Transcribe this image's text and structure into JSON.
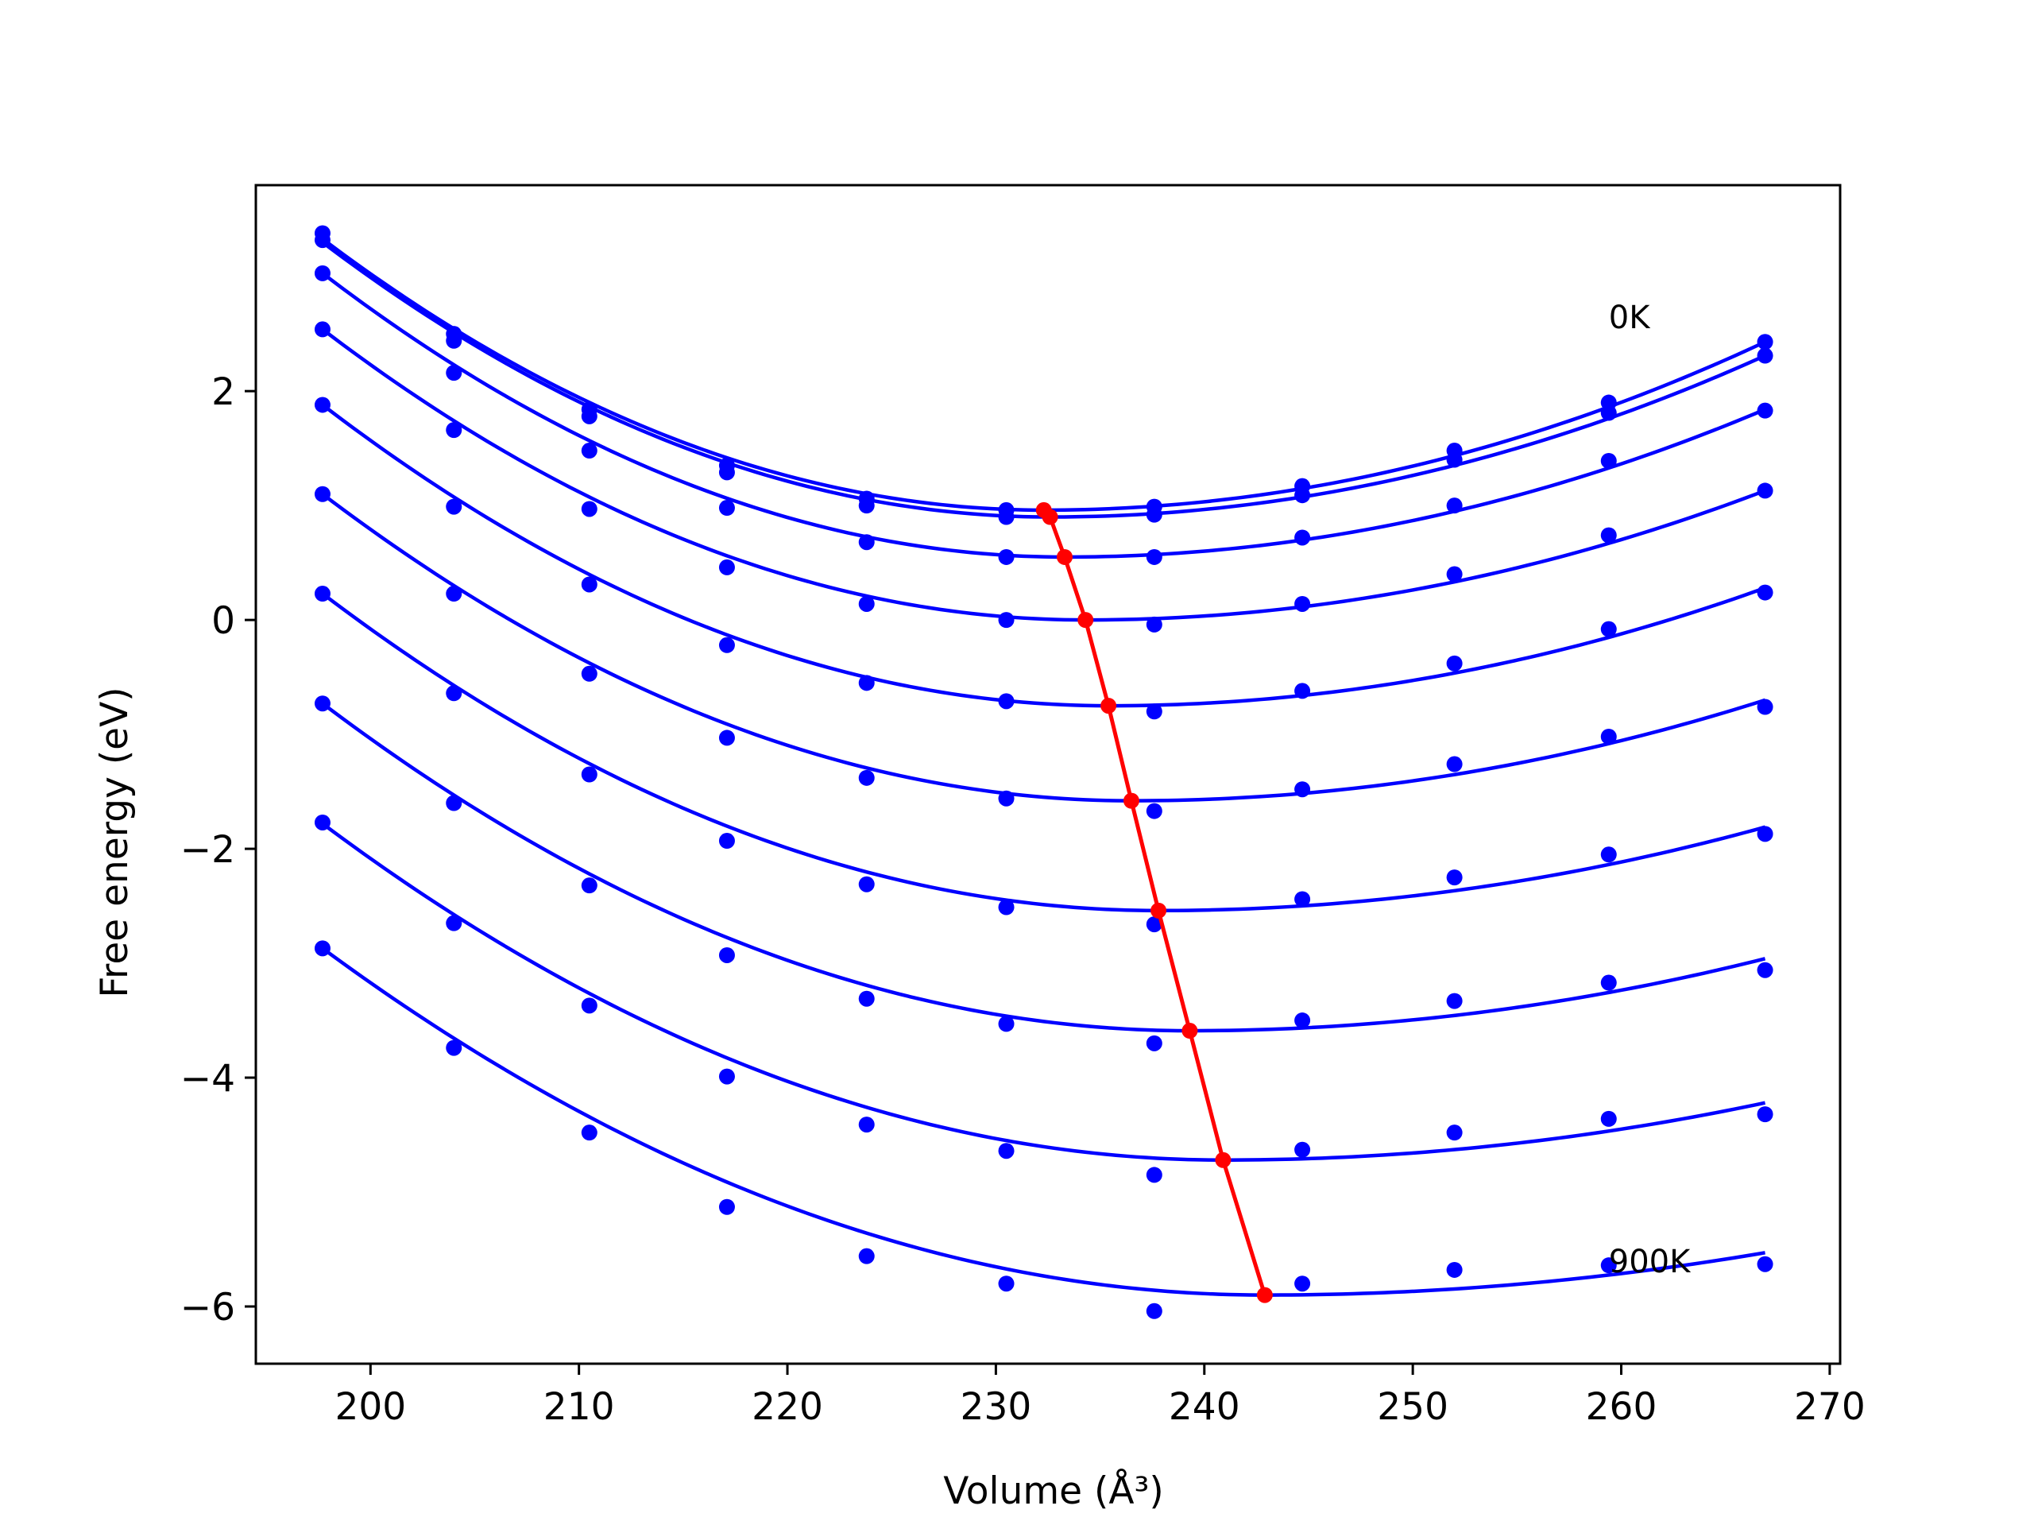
{
  "chart_data": {
    "type": "scatter",
    "title": "",
    "xlabel": "Volume (Å³)",
    "ylabel": "Free energy (eV)",
    "xlim": [
      194.5,
      270.5
    ],
    "ylim": [
      -6.5,
      3.8
    ],
    "xticks": [
      200,
      210,
      220,
      230,
      240,
      250,
      260,
      270
    ],
    "yticks": [
      -6,
      -4,
      -2,
      0,
      2
    ],
    "grid": false,
    "colors": {
      "isotherms": "#0000ff",
      "minima": "#ff0000",
      "axes": "#000000",
      "background": "#ffffff"
    },
    "annotations": [
      {
        "text": "0K",
        "x": 259.4,
        "y": 2.55
      },
      {
        "text": "900K",
        "x": 259.4,
        "y": -5.7
      }
    ],
    "volumes": [
      197.7,
      204.0,
      210.5,
      217.1,
      223.8,
      230.5,
      237.6,
      244.7,
      252.0,
      259.4,
      266.9
    ],
    "series": [
      {
        "values": [
          3.38,
          2.5,
          1.84,
          1.35,
          1.06,
          0.96,
          0.99,
          1.17,
          1.48,
          1.9,
          2.43
        ],
        "fit": [
          3.33,
          0.96,
          232.3,
          2.43
        ]
      },
      {
        "values": [
          3.32,
          2.44,
          1.78,
          1.29,
          1.0,
          0.9,
          0.92,
          1.09,
          1.4,
          1.81,
          2.31
        ],
        "fit": [
          3.3,
          0.9,
          232.6,
          2.31
        ]
      },
      {
        "values": [
          3.03,
          2.16,
          1.48,
          0.98,
          0.68,
          0.55,
          0.55,
          0.72,
          1.0,
          1.39,
          1.83
        ],
        "fit": [
          3.03,
          0.55,
          233.3,
          1.84
        ]
      },
      {
        "values": [
          2.54,
          1.66,
          0.97,
          0.46,
          0.14,
          0.0,
          -0.04,
          0.14,
          0.4,
          0.74,
          1.13
        ],
        "fit": [
          2.54,
          0.0,
          234.3,
          1.13
        ]
      },
      {
        "values": [
          1.88,
          0.99,
          0.31,
          -0.22,
          -0.55,
          -0.71,
          -0.8,
          -0.62,
          -0.38,
          -0.08,
          0.24
        ],
        "fit": [
          1.88,
          -0.75,
          235.4,
          0.28
        ]
      },
      {
        "values": [
          1.1,
          0.23,
          -0.47,
          -1.03,
          -1.38,
          -1.56,
          -1.67,
          -1.48,
          -1.26,
          -1.02,
          -0.76
        ],
        "fit": [
          1.1,
          -1.58,
          236.5,
          -0.7
        ]
      },
      {
        "values": [
          0.23,
          -0.64,
          -1.35,
          -1.93,
          -2.31,
          -2.51,
          -2.66,
          -2.44,
          -2.25,
          -2.05,
          -1.87
        ],
        "fit": [
          0.23,
          -2.54,
          237.8,
          -1.81
        ]
      },
      {
        "values": [
          -0.73,
          -1.6,
          -2.32,
          -2.93,
          -3.31,
          -3.53,
          -3.7,
          -3.5,
          -3.33,
          -3.17,
          -3.06
        ],
        "fit": [
          -0.73,
          -3.59,
          239.3,
          -2.96
        ]
      },
      {
        "values": [
          -1.77,
          -2.65,
          -3.37,
          -3.99,
          -4.41,
          -4.64,
          -4.85,
          -4.63,
          -4.48,
          -4.36,
          -4.32
        ],
        "fit": [
          -1.78,
          -4.72,
          240.9,
          -4.22
        ]
      },
      {
        "values": [
          -2.87,
          -3.74,
          -4.48,
          -5.13,
          -5.56,
          -5.8,
          -6.04,
          -5.8,
          -5.68,
          -5.64,
          -5.63
        ],
        "fit": [
          -2.87,
          -5.9,
          242.9,
          -5.53
        ]
      }
    ],
    "minima": {
      "x": [
        232.3,
        232.6,
        233.3,
        234.3,
        235.4,
        236.5,
        237.8,
        239.3,
        240.9,
        242.9
      ],
      "y": [
        0.96,
        0.9,
        0.55,
        0.0,
        -0.75,
        -1.58,
        -2.54,
        -3.59,
        -4.72,
        -5.9
      ]
    }
  }
}
